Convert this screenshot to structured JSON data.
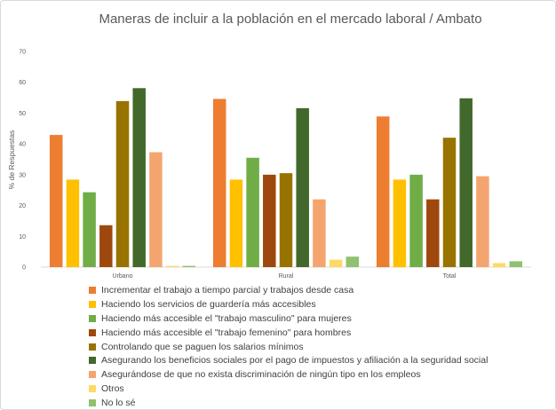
{
  "chart_data": {
    "type": "bar",
    "title": "Maneras de incluir a la población en el mercado laboral / Ambato",
    "xlabel": "",
    "ylabel": "% de Respuestas",
    "ylim": [
      0,
      70
    ],
    "yticks": [
      "0",
      "10",
      "20",
      "30",
      "40",
      "50",
      "60",
      "70"
    ],
    "grid": false,
    "legend": "bottom",
    "categories": [
      "Urbano",
      "Rural",
      "Total"
    ],
    "series": [
      {
        "name": "Incrementar el trabajo a tiempo parcial y trabajos desde casa",
        "color": "#ed7d31",
        "values": [
          42.9,
          54.6,
          48.9
        ]
      },
      {
        "name": "Haciendo los servicios de guardería más accesibles",
        "color": "#ffc000",
        "values": [
          28.4,
          28.4,
          28.4
        ]
      },
      {
        "name": "Haciendo más accesible el \"trabajo masculino\" para mujeres",
        "color": "#70ad47",
        "values": [
          24.3,
          35.5,
          30.0
        ]
      },
      {
        "name": "Haciendo más accesible el \"trabajo femenino\" para hombres",
        "color": "#9e480e",
        "values": [
          13.6,
          30.0,
          22.0
        ]
      },
      {
        "name": "Controlando que se paguen los salarios mínimos",
        "color": "#997300",
        "values": [
          53.9,
          30.5,
          42.0
        ]
      },
      {
        "name": "Asegurando los beneficios sociales por el pago de impuestos y afiliación a la seguridad social",
        "color": "#43682b",
        "values": [
          58.1,
          51.6,
          54.8
        ]
      },
      {
        "name": "Asegurándose de que no exista discriminación de ningún tipo en los empleos",
        "color": "#f4a56f",
        "values": [
          37.3,
          22.0,
          29.5
        ]
      },
      {
        "name": "Otros",
        "color": "#ffd966",
        "values": [
          0.4,
          2.4,
          1.3
        ]
      },
      {
        "name": "No lo sé",
        "color": "#8fc16e",
        "values": [
          0.4,
          3.4,
          1.9
        ]
      }
    ]
  }
}
